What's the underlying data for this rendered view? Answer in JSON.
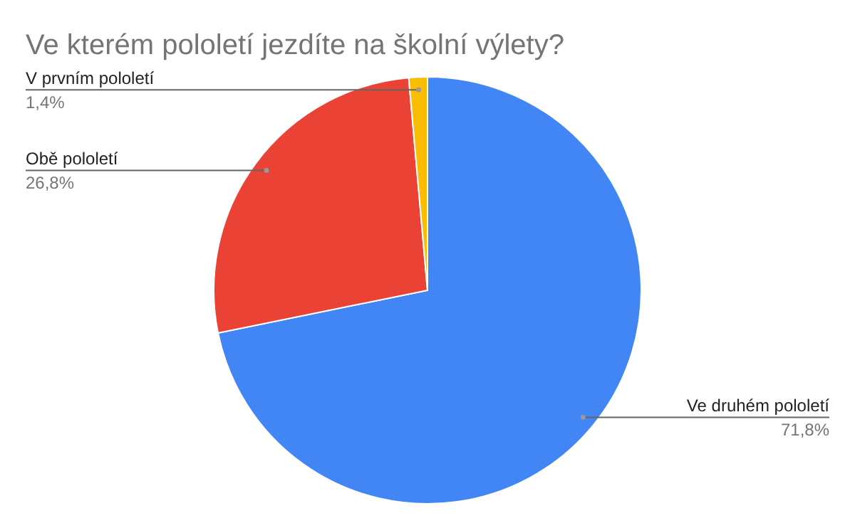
{
  "chart_data": {
    "type": "pie",
    "title": "Ve kterém pololetí jezdíte na školní výlety?",
    "categories": [
      "Ve druhém pololetí",
      "Obě pololetí",
      "V prvním pololetí"
    ],
    "values": [
      71.8,
      26.8,
      1.4
    ],
    "colors": [
      "#4285f4",
      "#ea4335",
      "#fbbc04"
    ],
    "value_labels": [
      "71,8%",
      "26,8%",
      "1,4%"
    ]
  }
}
